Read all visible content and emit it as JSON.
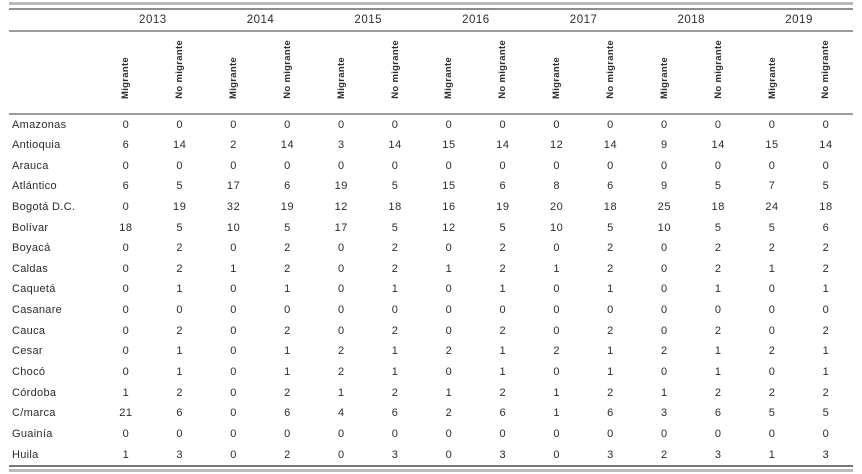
{
  "table": {
    "years": [
      "2013",
      "2014",
      "2015",
      "2016",
      "2017",
      "2018",
      "2019"
    ],
    "subheaders": [
      "Migrante",
      "No migrante"
    ],
    "rows": [
      {
        "label": "Amazonas",
        "values": [
          0,
          0,
          0,
          0,
          0,
          0,
          0,
          0,
          0,
          0,
          0,
          0,
          0,
          0
        ]
      },
      {
        "label": "Antioquia",
        "values": [
          6,
          14,
          2,
          14,
          3,
          14,
          15,
          14,
          12,
          14,
          9,
          14,
          15,
          14
        ]
      },
      {
        "label": "Arauca",
        "values": [
          0,
          0,
          0,
          0,
          0,
          0,
          0,
          0,
          0,
          0,
          0,
          0,
          0,
          0
        ]
      },
      {
        "label": "Atlántico",
        "values": [
          6,
          5,
          17,
          6,
          19,
          5,
          15,
          6,
          8,
          6,
          9,
          5,
          7,
          5
        ]
      },
      {
        "label": "Bogotá D.C.",
        "values": [
          0,
          19,
          32,
          19,
          12,
          18,
          16,
          19,
          20,
          18,
          25,
          18,
          24,
          18
        ]
      },
      {
        "label": "Bolívar",
        "values": [
          18,
          5,
          10,
          5,
          17,
          5,
          12,
          5,
          10,
          5,
          10,
          5,
          5,
          6
        ]
      },
      {
        "label": "Boyacá",
        "values": [
          0,
          2,
          0,
          2,
          0,
          2,
          0,
          2,
          0,
          2,
          0,
          2,
          2,
          2
        ]
      },
      {
        "label": "Caldas",
        "values": [
          0,
          2,
          1,
          2,
          0,
          2,
          1,
          2,
          1,
          2,
          0,
          2,
          1,
          2
        ]
      },
      {
        "label": "Caquetá",
        "values": [
          0,
          1,
          0,
          1,
          0,
          1,
          0,
          1,
          0,
          1,
          0,
          1,
          0,
          1
        ]
      },
      {
        "label": "Casanare",
        "values": [
          0,
          0,
          0,
          0,
          0,
          0,
          0,
          0,
          0,
          0,
          0,
          0,
          0,
          0
        ]
      },
      {
        "label": "Cauca",
        "values": [
          0,
          2,
          0,
          2,
          0,
          2,
          0,
          2,
          0,
          2,
          0,
          2,
          0,
          2
        ]
      },
      {
        "label": "Cesar",
        "values": [
          0,
          1,
          0,
          1,
          2,
          1,
          2,
          1,
          2,
          1,
          2,
          1,
          2,
          1
        ]
      },
      {
        "label": "Chocó",
        "values": [
          0,
          1,
          0,
          1,
          2,
          1,
          0,
          1,
          0,
          1,
          0,
          1,
          0,
          1
        ]
      },
      {
        "label": "Córdoba",
        "values": [
          1,
          2,
          0,
          2,
          1,
          2,
          1,
          2,
          1,
          2,
          1,
          2,
          2,
          2
        ]
      },
      {
        "label": "C/marca",
        "values": [
          21,
          6,
          0,
          6,
          4,
          6,
          2,
          6,
          1,
          6,
          3,
          6,
          5,
          5
        ]
      },
      {
        "label": "Guainía",
        "values": [
          0,
          0,
          0,
          0,
          0,
          0,
          0,
          0,
          0,
          0,
          0,
          0,
          0,
          0
        ]
      },
      {
        "label": "Huila",
        "values": [
          1,
          3,
          0,
          2,
          0,
          3,
          0,
          3,
          0,
          3,
          2,
          3,
          1,
          3
        ]
      }
    ]
  },
  "colors": {
    "rule_light": "#b9b9bc",
    "rule_dark": "#8e8e92",
    "header_rule": "#9c9ca0",
    "text": "#2b2b2e"
  }
}
